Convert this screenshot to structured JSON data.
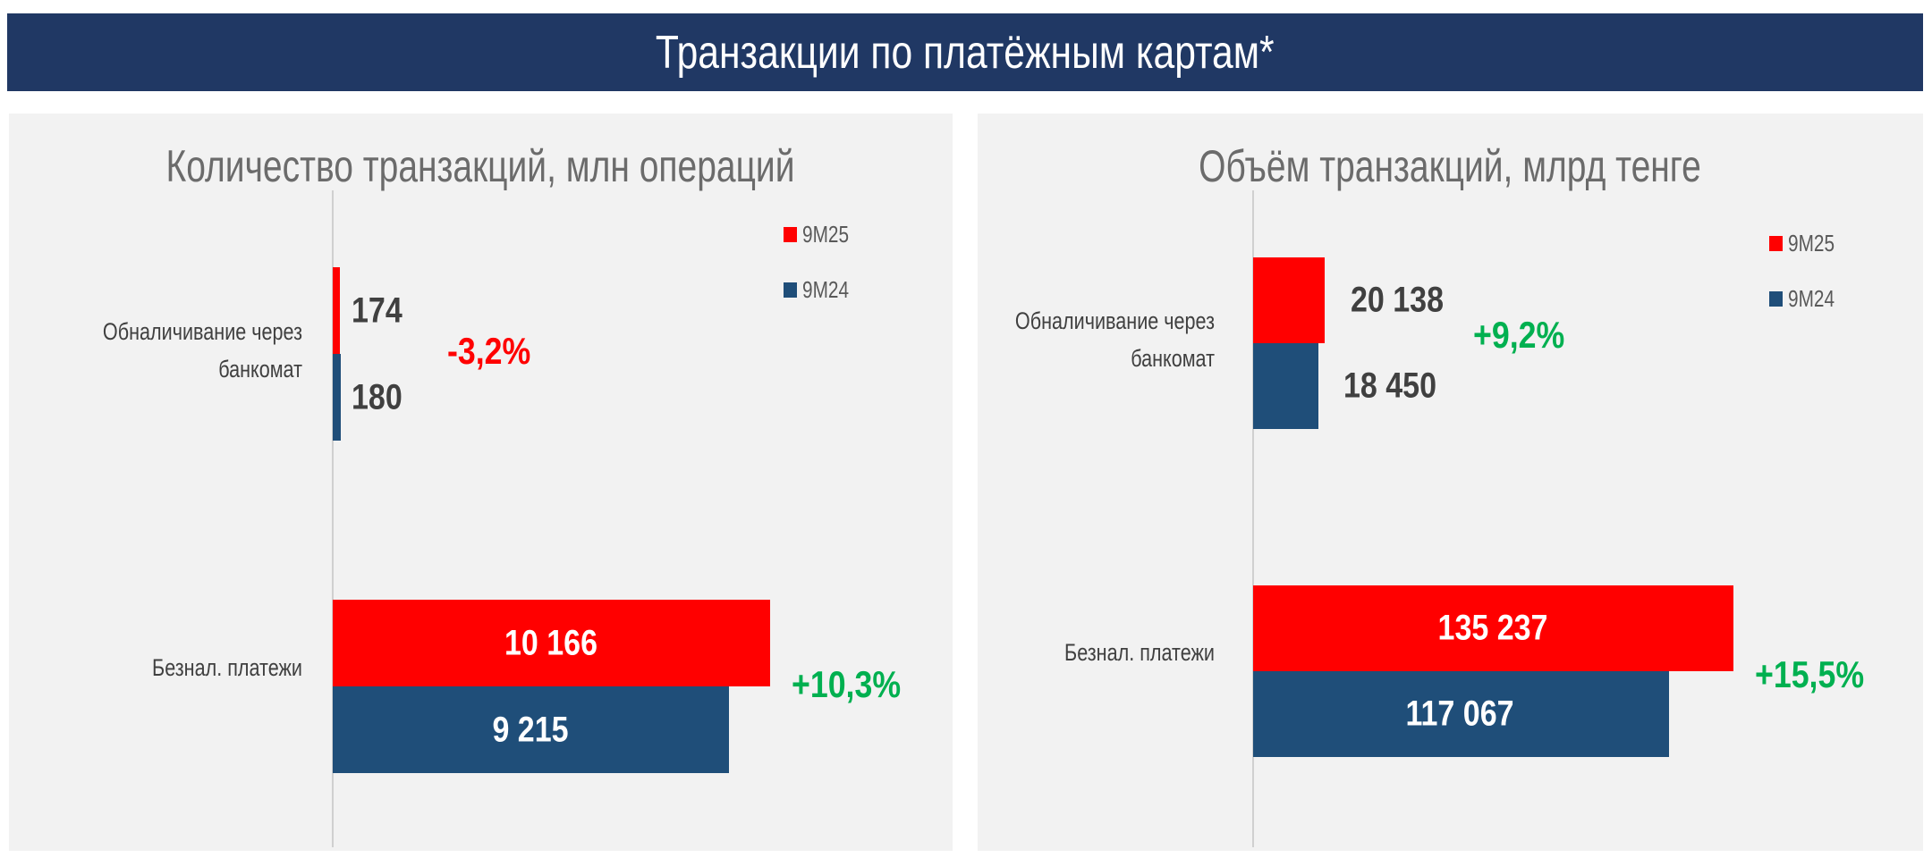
{
  "header": {
    "title": "Транзакции по платёжным картам*"
  },
  "colors": {
    "9M25": "#ff0000",
    "9M24": "#1f4e79",
    "positive": "#00b050",
    "negative": "#ff0000",
    "header_bg": "#203864"
  },
  "chart_data": [
    {
      "type": "bar",
      "orientation": "horizontal",
      "title": "Количество транзакций, млн операций",
      "categories": [
        "Обналичивание через банкомат",
        "Безнал. платежи"
      ],
      "series": [
        {
          "name": "9M25",
          "values": [
            174,
            10166
          ],
          "labels": [
            "174",
            "10 166"
          ]
        },
        {
          "name": "9M24",
          "values": [
            180,
            9215
          ],
          "labels": [
            "180",
            "9 215"
          ]
        }
      ],
      "changes": [
        "-3,2%",
        "+10,3%"
      ],
      "legend": "top-right",
      "grid": false
    },
    {
      "type": "bar",
      "orientation": "horizontal",
      "title": "Объём транзакций, млрд тенге",
      "categories": [
        "Обналичивание через банкомат",
        "Безнал. платежи"
      ],
      "series": [
        {
          "name": "9M25",
          "values": [
            20138,
            135237
          ],
          "labels": [
            "20 138",
            "135 237"
          ]
        },
        {
          "name": "9M24",
          "values": [
            18450,
            117067
          ],
          "labels": [
            "18 450",
            "117 067"
          ]
        }
      ],
      "changes": [
        "+9,2%",
        "+15,5%"
      ],
      "legend": "top-right",
      "grid": false
    }
  ]
}
